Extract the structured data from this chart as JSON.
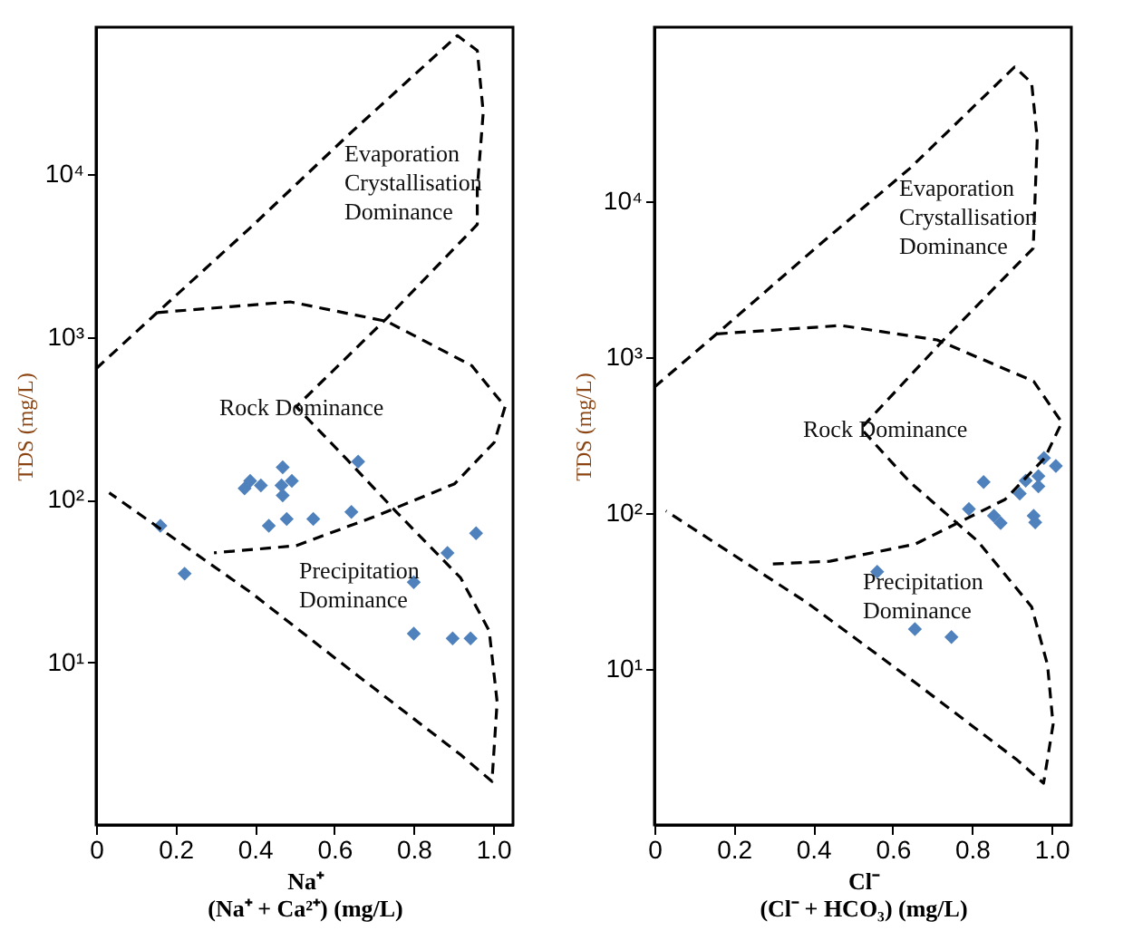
{
  "chart_data": [
    {
      "type": "scatter",
      "xlabel": "Na⁺\n(Na⁺ + Ca²⁺) (mg/L)",
      "ylabel": "TDS (mg/L)",
      "log": "y",
      "grid": false,
      "marker": "diamond",
      "xlim": [
        0,
        1.05
      ],
      "xticks": [
        0,
        0.2,
        0.4,
        0.6,
        0.8,
        {
          "value": 1,
          "label": "1.0"
        }
      ],
      "ylim": [
        1,
        80000
      ],
      "yticks": [
        {
          "value": 10,
          "label": "10¹"
        },
        {
          "value": 100,
          "label": "10²"
        },
        {
          "value": 1000,
          "label": "10³"
        },
        {
          "value": 10000,
          "label": "10⁴"
        }
      ],
      "series": [
        {
          "type": "scatter",
          "color": "#4f81bd",
          "x": [
            0.162,
            0.223,
            0.374,
            0.388,
            0.415,
            0.47,
            0.467,
            0.47,
            0.493,
            0.435,
            0.48,
            0.547,
            0.643,
            0.66,
            0.885,
            0.957,
            0.8,
            0.8,
            0.898,
            0.943
          ],
          "values": [
            69,
            35,
            117,
            130,
            122,
            158,
            122,
            106,
            130,
            69,
            76,
            76,
            84,
            171,
            47,
            62,
            31,
            15,
            14,
            14
          ]
        },
        {
          "type": "line",
          "color": "#000000",
          "line_style": "dashed",
          "marker": "none",
          "x": [
            0,
            0.154,
            0.39,
            0.633,
            0.91,
            0.96,
            0.975,
            0.96,
            0.96,
            0.732,
            0.504,
            0.633,
            0.758,
            0.918,
            0.99,
            1.01,
            0.997,
            0.918,
            0.647,
            0.39,
            0.033
          ],
          "values": [
            637,
            1410,
            4720,
            17200,
            71000,
            57500,
            24000,
            8130,
            4900,
            1300,
            372,
            175,
            83,
            33,
            15.6,
            5.7,
            1.85,
            2.7,
            8.7,
            26.8,
            110
          ]
        },
        {
          "type": "line",
          "color": "#000000",
          "line_style": "dashed",
          "marker": "none",
          "x": [
            0.154,
            0.489,
            0.732,
            0.946,
            1.03,
            1.003,
            0.903,
            0.704,
            0.504,
            0.297
          ],
          "values": [
            1410,
            1640,
            1245,
            665,
            372,
            225,
            125,
            79,
            52,
            47
          ]
        }
      ],
      "annotations": [
        "Evaporation\nCrystallisation\nDominance",
        "Rock Dominance",
        "Precipitation\nDominance"
      ]
    },
    {
      "type": "scatter",
      "xlabel": "Cl⁻\n(Cl⁻ + HCO₃) (mg/L)",
      "ylabel": "TDS (mg/L)",
      "log": "y",
      "grid": false,
      "marker": "diamond",
      "xlim": [
        0,
        1.05
      ],
      "xticks": [
        0,
        0.2,
        0.4,
        0.6,
        0.8,
        {
          "value": 1,
          "label": "1.0"
        }
      ],
      "ylim": [
        1,
        130000
      ],
      "yticks": [
        {
          "value": 10,
          "label": "10¹"
        },
        {
          "value": 100,
          "label": "10²"
        },
        {
          "value": 1000,
          "label": "10³"
        },
        {
          "value": 10000,
          "label": "10⁴"
        }
      ],
      "series": [
        {
          "type": "scatter",
          "color": "#4f81bd",
          "x": [
            0.561,
            0.656,
            0.748,
            0.792,
            0.829,
            0.855,
            0.872,
            0.92,
            0.935,
            0.967,
            0.967,
            0.981,
            1.011,
            0.955,
            0.959
          ],
          "values": [
            42,
            18,
            16,
            106,
            158,
            96,
            86,
            133,
            161,
            172,
            148,
            225,
            200,
            96,
            87
          ]
        },
        {
          "type": "line",
          "color": "#000000",
          "line_style": "dashed",
          "marker": "none",
          "x": [
            0,
            0.157,
            0.414,
            0.643,
            0.907,
            0.95,
            0.964,
            0.954,
            0.728,
            0.52,
            0.643,
            0.814,
            0.95,
            0.99,
            1.004,
            0.98,
            0.914,
            0.656,
            0.385,
            0.029
          ],
          "values": [
            641,
            1406,
            5200,
            16150,
            72300,
            57100,
            25000,
            4980,
            1285,
            348,
            158,
            66,
            25,
            10.6,
            4.4,
            1.85,
            2.6,
            8.2,
            26.5,
            103
          ]
        },
        {
          "type": "line",
          "color": "#000000",
          "line_style": "dashed",
          "marker": "none",
          "x": [
            0.157,
            0.47,
            0.712,
            0.955,
            1.026,
            0.983,
            0.883,
            0.656,
            0.442,
            0.292
          ],
          "values": [
            1406,
            1590,
            1285,
            698,
            380,
            225,
            122,
            63,
            49,
            47
          ]
        }
      ],
      "annotations": [
        "Evaporation\nCrystallisation\nDominance",
        "Rock Dominance",
        "Precipitation\nDominance"
      ]
    }
  ]
}
